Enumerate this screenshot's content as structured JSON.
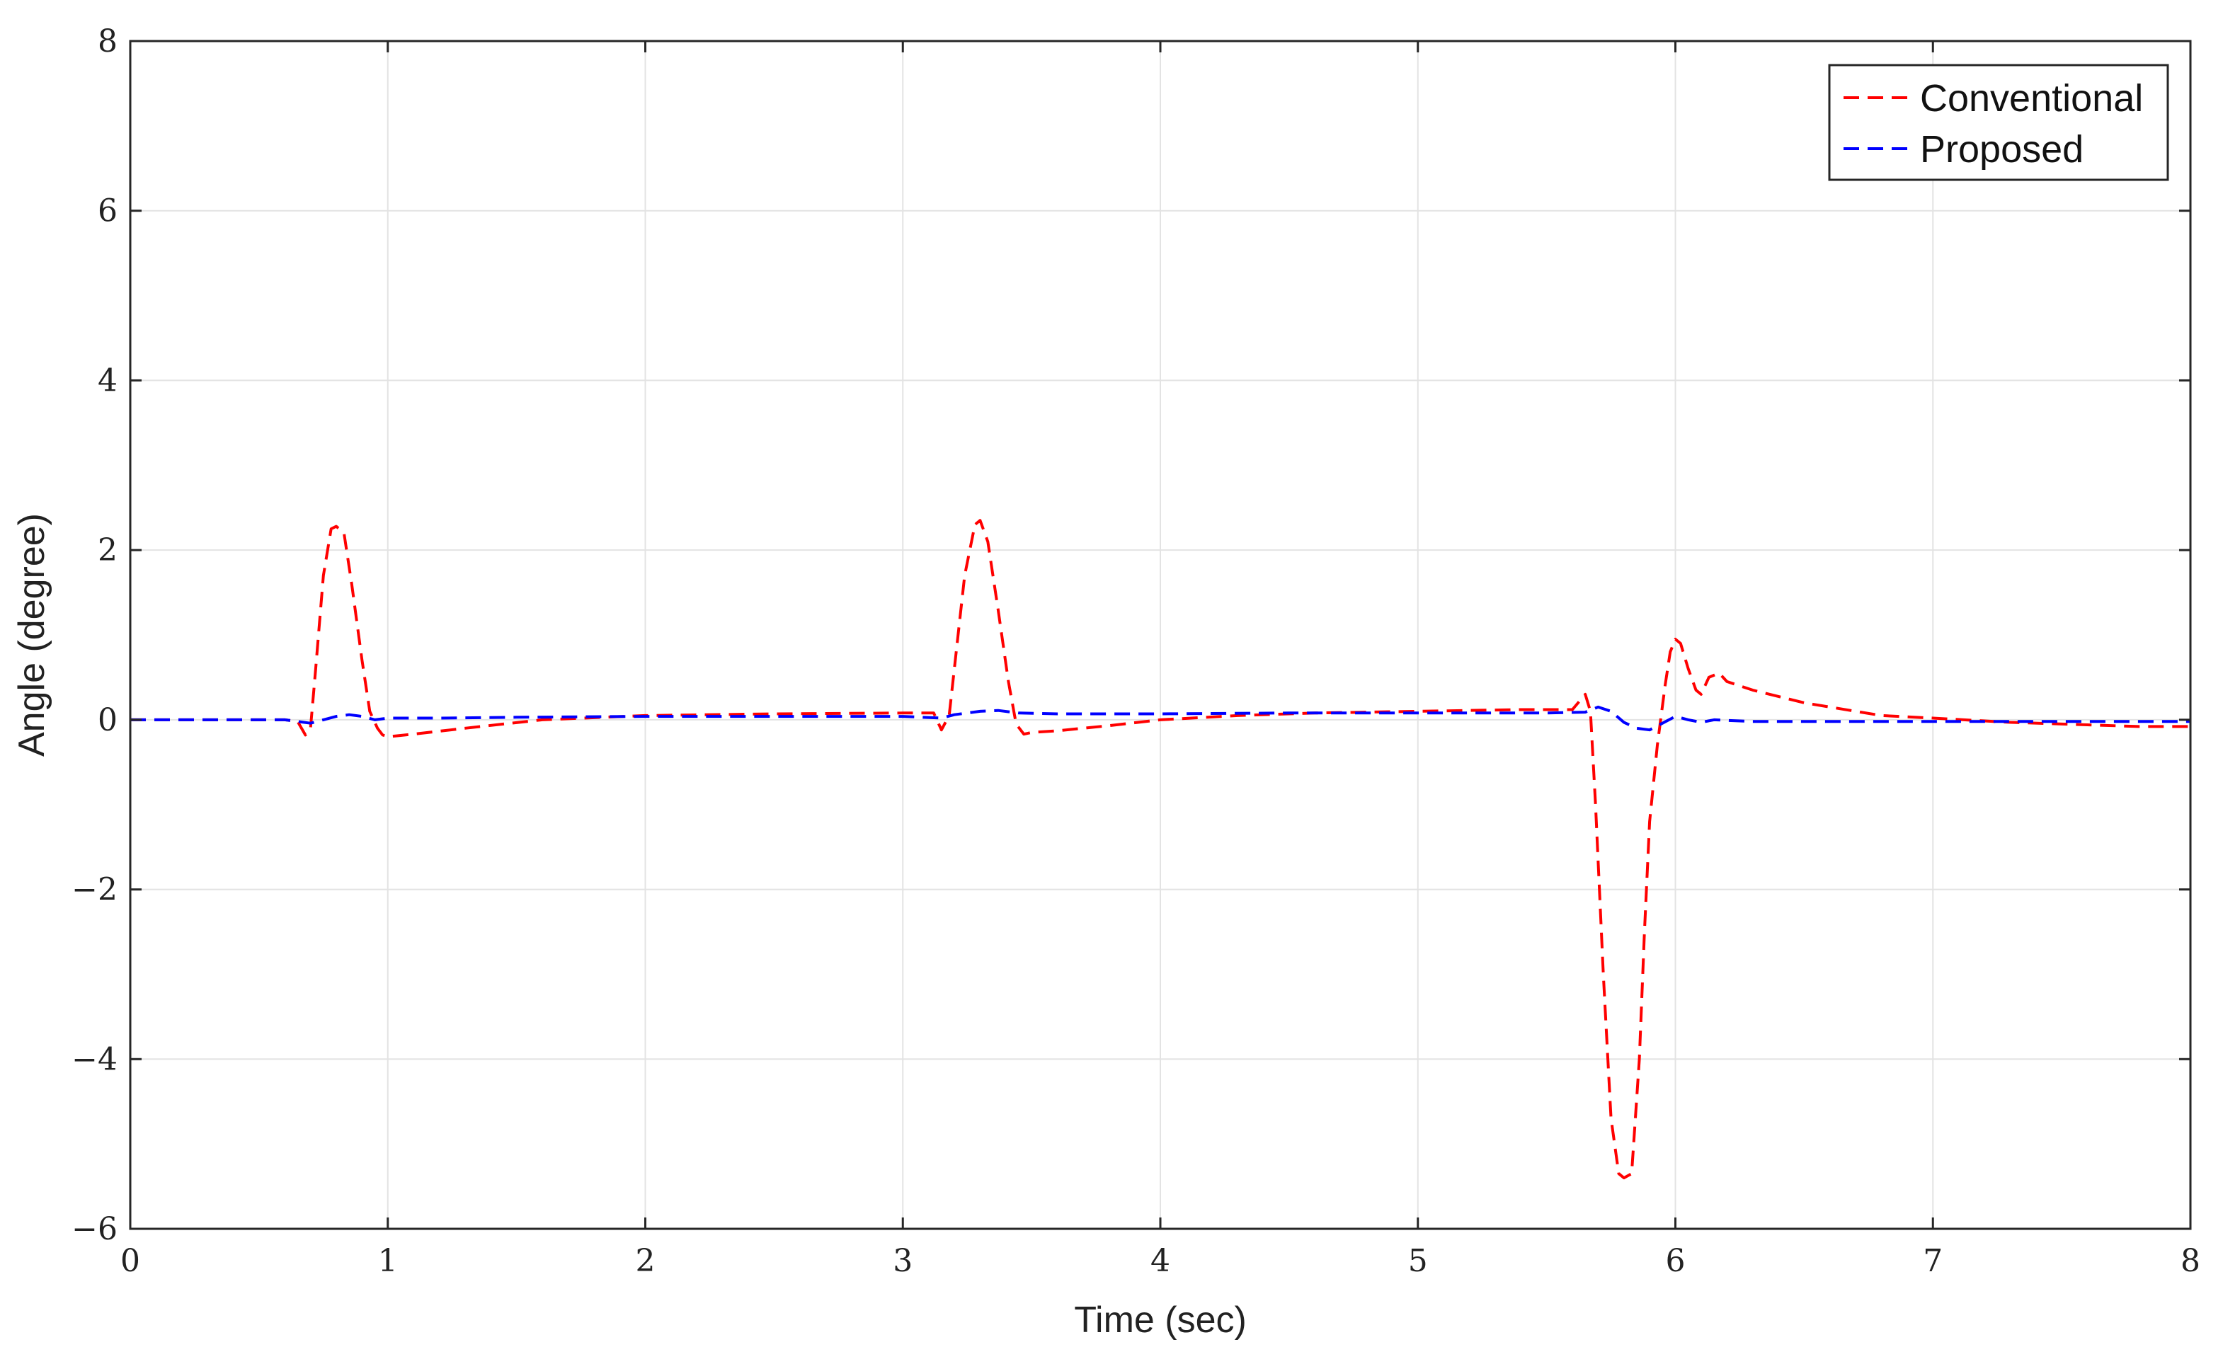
{
  "chart_data": {
    "type": "line",
    "title": "",
    "xlabel": "Time (sec)",
    "ylabel": "Angle (degree)",
    "xlim": [
      0,
      8
    ],
    "ylim": [
      -6,
      8
    ],
    "xticks": [
      "0",
      "1",
      "2",
      "3",
      "4",
      "5",
      "6",
      "7",
      "8"
    ],
    "yticks": [
      "−6",
      "−4",
      "−2",
      "0",
      "2",
      "4",
      "6",
      "8"
    ],
    "grid": true,
    "legend_position": "top-right",
    "series": [
      {
        "name": "Conventional",
        "color": "#ff0000",
        "dash": "dashed",
        "x": [
          0,
          0.6,
          0.65,
          0.68,
          0.7,
          0.72,
          0.75,
          0.78,
          0.8,
          0.83,
          0.86,
          0.9,
          0.93,
          0.96,
          0.98,
          1.0,
          1.1,
          1.3,
          1.6,
          2.0,
          2.5,
          3.0,
          3.12,
          3.15,
          3.18,
          3.2,
          3.24,
          3.28,
          3.3,
          3.33,
          3.37,
          3.41,
          3.44,
          3.47,
          3.5,
          3.6,
          3.8,
          4.0,
          4.3,
          4.6,
          5.0,
          5.4,
          5.6,
          5.65,
          5.67,
          5.69,
          5.72,
          5.75,
          5.78,
          5.8,
          5.83,
          5.86,
          5.88,
          5.9,
          5.93,
          5.96,
          5.98,
          6.0,
          6.02,
          6.05,
          6.08,
          6.1,
          6.13,
          6.17,
          6.2,
          6.3,
          6.5,
          6.8,
          7.0,
          7.3,
          7.6,
          7.8,
          8.0
        ],
        "y": [
          0,
          0,
          -0.02,
          -0.18,
          -0.1,
          0.6,
          1.7,
          2.25,
          2.28,
          2.2,
          1.6,
          0.7,
          0.1,
          -0.1,
          -0.18,
          -0.2,
          -0.17,
          -0.1,
          0.0,
          0.05,
          0.07,
          0.08,
          0.08,
          -0.12,
          0.05,
          0.6,
          1.7,
          2.3,
          2.35,
          2.1,
          1.3,
          0.45,
          -0.05,
          -0.17,
          -0.15,
          -0.13,
          -0.07,
          0.0,
          0.05,
          0.08,
          0.1,
          0.12,
          0.12,
          0.3,
          0.1,
          -1.0,
          -3.0,
          -4.7,
          -5.35,
          -5.4,
          -5.35,
          -4.0,
          -2.5,
          -1.2,
          -0.3,
          0.4,
          0.8,
          0.95,
          0.9,
          0.6,
          0.35,
          0.3,
          0.5,
          0.55,
          0.45,
          0.35,
          0.2,
          0.05,
          0.02,
          -0.03,
          -0.06,
          -0.08,
          -0.08
        ]
      },
      {
        "name": "Proposed",
        "color": "#0000ff",
        "dash": "dashed",
        "x": [
          0,
          0.6,
          0.7,
          0.75,
          0.8,
          0.85,
          0.9,
          0.95,
          1.0,
          1.2,
          1.5,
          2.0,
          2.5,
          3.0,
          3.15,
          3.2,
          3.3,
          3.37,
          3.45,
          3.6,
          4.0,
          4.5,
          5.0,
          5.5,
          5.65,
          5.7,
          5.75,
          5.8,
          5.85,
          5.9,
          5.95,
          6.0,
          6.05,
          6.1,
          6.15,
          6.3,
          6.6,
          7.0,
          7.5,
          8.0
        ],
        "y": [
          0,
          0,
          -0.04,
          0.0,
          0.04,
          0.06,
          0.04,
          0.0,
          0.02,
          0.02,
          0.03,
          0.04,
          0.04,
          0.04,
          0.02,
          0.06,
          0.1,
          0.11,
          0.08,
          0.07,
          0.07,
          0.08,
          0.08,
          0.08,
          0.09,
          0.15,
          0.1,
          -0.03,
          -0.1,
          -0.12,
          -0.04,
          0.04,
          0.0,
          -0.03,
          0.0,
          -0.02,
          -0.02,
          -0.02,
          -0.02,
          -0.02
        ]
      }
    ]
  }
}
